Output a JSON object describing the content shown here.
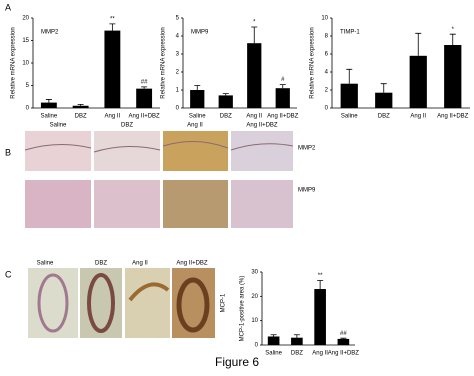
{
  "panel_labels": [
    "A",
    "B",
    "C"
  ],
  "chart_data": [
    {
      "type": "bar",
      "title": "MMP2",
      "y_label": "Relative mRNA expression",
      "categories": [
        "Saline",
        "DBZ",
        "Ang II",
        "Ang II+DBZ"
      ],
      "values": [
        1.2,
        0.5,
        17.2,
        4.3
      ],
      "errors": [
        0.7,
        0.3,
        1.5,
        0.4
      ],
      "color": "#000000",
      "ylim": [
        0,
        20
      ],
      "yticks": [
        0,
        5,
        10,
        15,
        20
      ],
      "annotations": [
        {
          "text": "**",
          "x": "Ang II"
        },
        {
          "text": "##",
          "x": "Ang II+DBZ"
        }
      ]
    },
    {
      "type": "bar",
      "title": "MMP9",
      "y_label": "Relative mRNA expression",
      "categories": [
        "Saline",
        "DBZ",
        "Ang II",
        "Ang II+DBZ"
      ],
      "values": [
        1.0,
        0.7,
        3.6,
        1.1
      ],
      "errors": [
        0.25,
        0.1,
        0.9,
        0.2
      ],
      "color": "#000000",
      "ylim": [
        0,
        5
      ],
      "yticks": [
        0,
        1,
        2,
        3,
        4,
        5
      ],
      "annotations": [
        {
          "text": "*",
          "x": "Ang II"
        },
        {
          "text": "#",
          "x": "Ang II+DBZ"
        }
      ]
    },
    {
      "type": "bar",
      "title": "TIMP-1",
      "y_label": "Relative mRNA expression",
      "categories": [
        "Saline",
        "DBZ",
        "Ang II",
        "Ang II+DBZ"
      ],
      "values": [
        2.7,
        1.7,
        5.8,
        7.0
      ],
      "errors": [
        1.6,
        1.0,
        2.5,
        1.2
      ],
      "color": "#000000",
      "ylim": [
        0,
        10
      ],
      "yticks": [
        0,
        2,
        4,
        6,
        8,
        10
      ],
      "annotations": [
        {
          "text": "*",
          "x": "Ang II+DBZ"
        }
      ]
    },
    {
      "type": "bar",
      "y_label": "MCP-1-positive area (%)",
      "categories": [
        "Saline",
        "DBZ",
        "Ang II",
        "Ang II+DBZ"
      ],
      "values": [
        3.5,
        3.0,
        23,
        2.5
      ],
      "errors": [
        0.7,
        1.2,
        3.5,
        0.3
      ],
      "color": "#000000",
      "ylim": [
        0,
        30
      ],
      "yticks": [
        0,
        10,
        20,
        30
      ],
      "annotations": [
        {
          "text": "**",
          "x": "Ang II"
        },
        {
          "text": "##",
          "x": "Ang II+DBZ"
        }
      ]
    }
  ],
  "panel_b": {
    "columns": [
      "Saline",
      "DBZ",
      "Ang II",
      "Ang II+DBZ"
    ],
    "rows": [
      "MMP2",
      "MMP9"
    ]
  },
  "panel_c": {
    "columns": [
      "Saline",
      "DBZ",
      "Ang II",
      "Ang II+DBZ"
    ],
    "row": "MCP-1"
  },
  "caption": "Figure 6"
}
